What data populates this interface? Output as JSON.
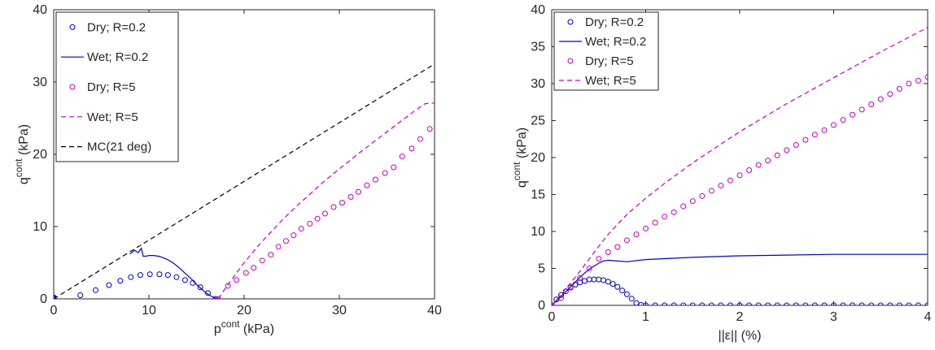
{
  "colors": {
    "dry_r02": "#0000cc",
    "wet_r02": "#0000cc",
    "dry_r5": "#bf00bf",
    "wet_r5": "#bf00bf",
    "mc": "#000000"
  },
  "chart_data": [
    {
      "type": "line",
      "xlabel": {
        "base": "p",
        "sup": "cont",
        "unit": " (kPa)"
      },
      "ylabel": {
        "base": "q",
        "sup": "cont",
        "unit": " (kPa)"
      },
      "xlim": [
        0,
        40
      ],
      "ylim": [
        0,
        40
      ],
      "xticks": [
        0,
        10,
        20,
        30,
        40
      ],
      "yticks": [
        0,
        10,
        20,
        30,
        40
      ],
      "grid": false,
      "legend_position": "top-left",
      "series": [
        {
          "name": "Dry; R=0.2",
          "style": "circle",
          "color": "#0000cc",
          "x": [
            0,
            0,
            0,
            2.8,
            4.4,
            5.8,
            7.0,
            8.1,
            9.1,
            10.1,
            11.1,
            12.0,
            12.9,
            13.8,
            14.6,
            15.4,
            16.2,
            17.0
          ],
          "y": [
            0,
            0.1,
            0.2,
            0.5,
            1.2,
            1.9,
            2.5,
            3.0,
            3.3,
            3.4,
            3.4,
            3.3,
            3.0,
            2.6,
            2.2,
            1.6,
            0.8,
            0
          ]
        },
        {
          "name": "Wet; R=0.2",
          "style": "solid",
          "color": "#0000cc",
          "x": [
            8.0,
            8.5,
            8.9,
            9.2,
            9.4,
            9.7,
            10.0,
            10.5,
            11.0,
            11.5,
            12.0,
            12.5,
            13.0,
            13.5,
            14.0,
            14.5,
            15.0,
            15.5,
            16.0,
            16.5,
            16.8,
            17.0,
            17.2
          ],
          "y": [
            6.2,
            6.7,
            6.4,
            7.0,
            5.9,
            5.9,
            6.0,
            6.0,
            5.9,
            5.7,
            5.4,
            5.0,
            4.5,
            3.9,
            3.3,
            2.7,
            2.0,
            1.4,
            0.8,
            0.4,
            0.2,
            0.1,
            0
          ]
        },
        {
          "name": "Dry; R=5",
          "style": "circle",
          "color": "#bf00bf",
          "x": [
            17.3,
            18.3,
            19.2,
            20.2,
            21.0,
            21.9,
            22.8,
            23.6,
            24.4,
            25.2,
            26.0,
            26.9,
            27.7,
            28.5,
            29.4,
            30.3,
            31.2,
            32.0,
            32.9,
            33.8,
            34.8,
            35.7,
            36.6,
            37.6,
            38.5,
            39.5
          ],
          "y": [
            0,
            1.8,
            2.6,
            3.6,
            4.3,
            5.3,
            6.1,
            7.2,
            8.0,
            8.8,
            9.7,
            10.4,
            11.1,
            11.8,
            12.7,
            13.3,
            14.1,
            14.8,
            15.7,
            16.5,
            17.4,
            18.2,
            19.7,
            20.8,
            22.1,
            23.5
          ]
        },
        {
          "name": "Wet; R=5",
          "style": "dashed",
          "color": "#bf00bf",
          "x": [
            17.3,
            18,
            19,
            20,
            21,
            22,
            23,
            24,
            25,
            26,
            27,
            28,
            29,
            30,
            31,
            32,
            33,
            34,
            35,
            36,
            37,
            38,
            39,
            40
          ],
          "y": [
            0,
            1.4,
            3.2,
            5.0,
            6.6,
            8.1,
            9.5,
            10.9,
            12.2,
            13.4,
            14.6,
            15.8,
            16.9,
            18.0,
            19.0,
            20.1,
            21.1,
            22.1,
            23.1,
            24.1,
            25.1,
            26.1,
            27.0,
            27.1
          ]
        },
        {
          "name": "MC(21 deg)",
          "style": "dashed",
          "color": "#000000",
          "x": [
            0,
            40
          ],
          "y": [
            0,
            32.5
          ]
        }
      ]
    },
    {
      "type": "line",
      "xlabel": {
        "base": "||ε|| (%)"
      },
      "ylabel": {
        "base": "q",
        "sup": "cont",
        "unit": " (kPa)"
      },
      "xlim": [
        0,
        4
      ],
      "ylim": [
        0,
        40
      ],
      "xticks": [
        0,
        1,
        2,
        3,
        4
      ],
      "yticks": [
        0,
        5,
        10,
        15,
        20,
        25,
        30,
        35,
        40
      ],
      "grid": false,
      "legend_position": "top-left",
      "series": [
        {
          "name": "Dry; R=0.2",
          "style": "circle",
          "color": "#0000cc",
          "x": [
            0,
            0.05,
            0.1,
            0.15,
            0.2,
            0.25,
            0.3,
            0.35,
            0.4,
            0.45,
            0.5,
            0.55,
            0.6,
            0.65,
            0.7,
            0.75,
            0.8,
            0.85,
            0.9,
            0.95,
            1.0,
            1.1,
            1.2,
            1.3,
            1.4,
            1.5,
            1.6,
            1.7,
            1.8,
            1.9,
            2.0,
            2.1,
            2.2,
            2.3,
            2.4,
            2.5,
            2.6,
            2.7,
            2.8,
            2.9,
            3.0,
            3.1,
            3.2,
            3.3,
            3.4,
            3.5,
            3.6,
            3.7,
            3.8,
            3.9,
            4.0
          ],
          "y": [
            0,
            0.8,
            1.4,
            1.9,
            2.4,
            2.8,
            3.1,
            3.3,
            3.5,
            3.5,
            3.5,
            3.4,
            3.2,
            2.9,
            2.5,
            2.0,
            1.5,
            0.9,
            0.3,
            0.05,
            0,
            0,
            0,
            0,
            0,
            0,
            0,
            0,
            0,
            0,
            0,
            0,
            0,
            0,
            0,
            0,
            0,
            0,
            0,
            0,
            0,
            0,
            0,
            0,
            0,
            0,
            0,
            0,
            0,
            0,
            0
          ]
        },
        {
          "name": "Wet; R=0.2",
          "style": "solid",
          "color": "#0000cc",
          "x": [
            0,
            0.1,
            0.2,
            0.3,
            0.4,
            0.5,
            0.55,
            0.6,
            0.7,
            0.8,
            1.0,
            1.5,
            2.0,
            2.5,
            3.0,
            3.5,
            4.0
          ],
          "y": [
            0,
            1.2,
            2.5,
            3.8,
            4.9,
            5.7,
            6.0,
            6.1,
            6.0,
            5.9,
            6.2,
            6.5,
            6.7,
            6.8,
            6.9,
            6.9,
            6.9
          ]
        },
        {
          "name": "Dry; R=5",
          "style": "circle",
          "color": "#bf00bf",
          "x": [
            0,
            0.1,
            0.2,
            0.3,
            0.4,
            0.5,
            0.6,
            0.7,
            0.8,
            0.9,
            1.0,
            1.1,
            1.2,
            1.3,
            1.4,
            1.5,
            1.6,
            1.7,
            1.8,
            1.9,
            2.0,
            2.1,
            2.2,
            2.3,
            2.4,
            2.5,
            2.6,
            2.7,
            2.8,
            2.9,
            3.0,
            3.1,
            3.2,
            3.3,
            3.4,
            3.5,
            3.6,
            3.7,
            3.8,
            3.9,
            4.0
          ],
          "y": [
            0,
            1.0,
            2.5,
            3.7,
            5.0,
            6.3,
            7.2,
            7.9,
            8.8,
            9.6,
            10.4,
            11.2,
            12.0,
            12.6,
            13.4,
            14.1,
            14.8,
            15.5,
            16.2,
            16.9,
            17.6,
            18.3,
            19.0,
            19.6,
            20.3,
            21.0,
            21.7,
            22.4,
            23.1,
            23.7,
            24.4,
            25.1,
            25.8,
            26.5,
            27.2,
            27.9,
            28.6,
            29.3,
            30.0,
            30.4,
            30.9
          ]
        },
        {
          "name": "Wet; R=5",
          "style": "dashed",
          "color": "#bf00bf",
          "x": [
            0,
            0.1,
            0.2,
            0.3,
            0.4,
            0.5,
            0.6,
            0.8,
            1.0,
            1.2,
            1.5,
            2.0,
            2.5,
            3.0,
            3.5,
            4.0
          ],
          "y": [
            0,
            1.5,
            3.0,
            4.6,
            6.3,
            8.0,
            9.6,
            12.3,
            14.5,
            16.5,
            19.3,
            23.5,
            27.3,
            30.8,
            34.3,
            37.6
          ]
        }
      ]
    }
  ]
}
